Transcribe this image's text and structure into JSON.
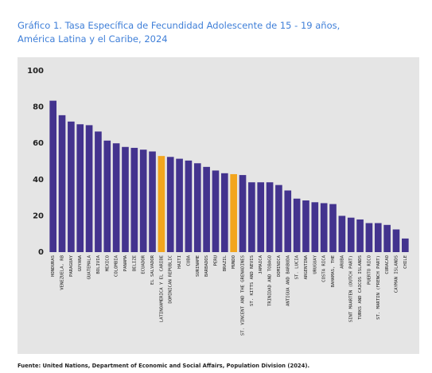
{
  "chart_data": {
    "type": "bar",
    "title": [
      "Gráfico 1. Tasa Específica de Fecundidad Adolescente de 15 - 19 años,",
      "América Latina y el Caribe, 2024"
    ],
    "categories": [
      "HONDURAS",
      "VENEZUELA, RB",
      "PARAGUAY",
      "GUYANA",
      "GUATEMALA",
      "BOLIVIA",
      "MEXICO",
      "COLOMBIA",
      "PANAMA",
      "BELIZE",
      "ECUADOR",
      "EL SALVADOR",
      "LATINOAMERICA Y EL CARIBE",
      "DOMINICAN REPUBLIC",
      "HAITI",
      "CUBA",
      "SURINAME",
      "BARBADOS",
      "PERU",
      "BRAZIL",
      "MUNDO",
      "ST. VINCENT AND THE GRENADINES",
      "ST. KITTS AND NEVIS",
      "JAMAICA",
      "TRINIDAD AND TOBAGO",
      "DOMINICA",
      "ANTIGUA AND BARBUDA",
      "ST. LUCIA",
      "ARGENTINA",
      "URUGUAY",
      "COSTA RICA",
      "BAHAMAS, THE",
      "ARUBA",
      "SINT MAARTEN (DUTCH PART)",
      "TURKS AND CAICOS ISLANDS",
      "PUERTO RICO",
      "ST. MARTIN (FRENCH PART)",
      "CURACAO",
      "CAYMAN ISLANDS",
      "CHILE"
    ],
    "values": [
      83.5,
      75.5,
      72,
      70.5,
      70,
      66.5,
      61.5,
      60,
      58,
      57.5,
      56.5,
      55.5,
      53,
      52.5,
      51.5,
      50.5,
      49,
      47,
      45,
      43.5,
      43,
      42.5,
      38.5,
      38.5,
      38.5,
      37,
      34,
      29.5,
      28.5,
      27.5,
      27,
      26.5,
      20,
      19,
      18,
      16,
      16,
      15,
      12.5,
      7.5
    ],
    "colors": [
      "#43338e",
      "#43338e",
      "#43338e",
      "#43338e",
      "#43338e",
      "#43338e",
      "#43338e",
      "#43338e",
      "#43338e",
      "#43338e",
      "#43338e",
      "#43338e",
      "#f2a51e",
      "#43338e",
      "#43338e",
      "#43338e",
      "#43338e",
      "#43338e",
      "#43338e",
      "#43338e",
      "#f2a51e",
      "#43338e",
      "#43338e",
      "#43338e",
      "#43338e",
      "#43338e",
      "#43338e",
      "#43338e",
      "#43338e",
      "#43338e",
      "#43338e",
      "#43338e",
      "#43338e",
      "#43338e",
      "#43338e",
      "#43338e",
      "#43338e",
      "#43338e",
      "#43338e",
      "#43338e"
    ],
    "ylim": [
      0,
      100
    ],
    "yticks": [
      0,
      20,
      40,
      60,
      80,
      100
    ],
    "grid": false,
    "source": "Fuente: United Nations, Department of Economic and Social Affairs, Population Division (2024)."
  }
}
